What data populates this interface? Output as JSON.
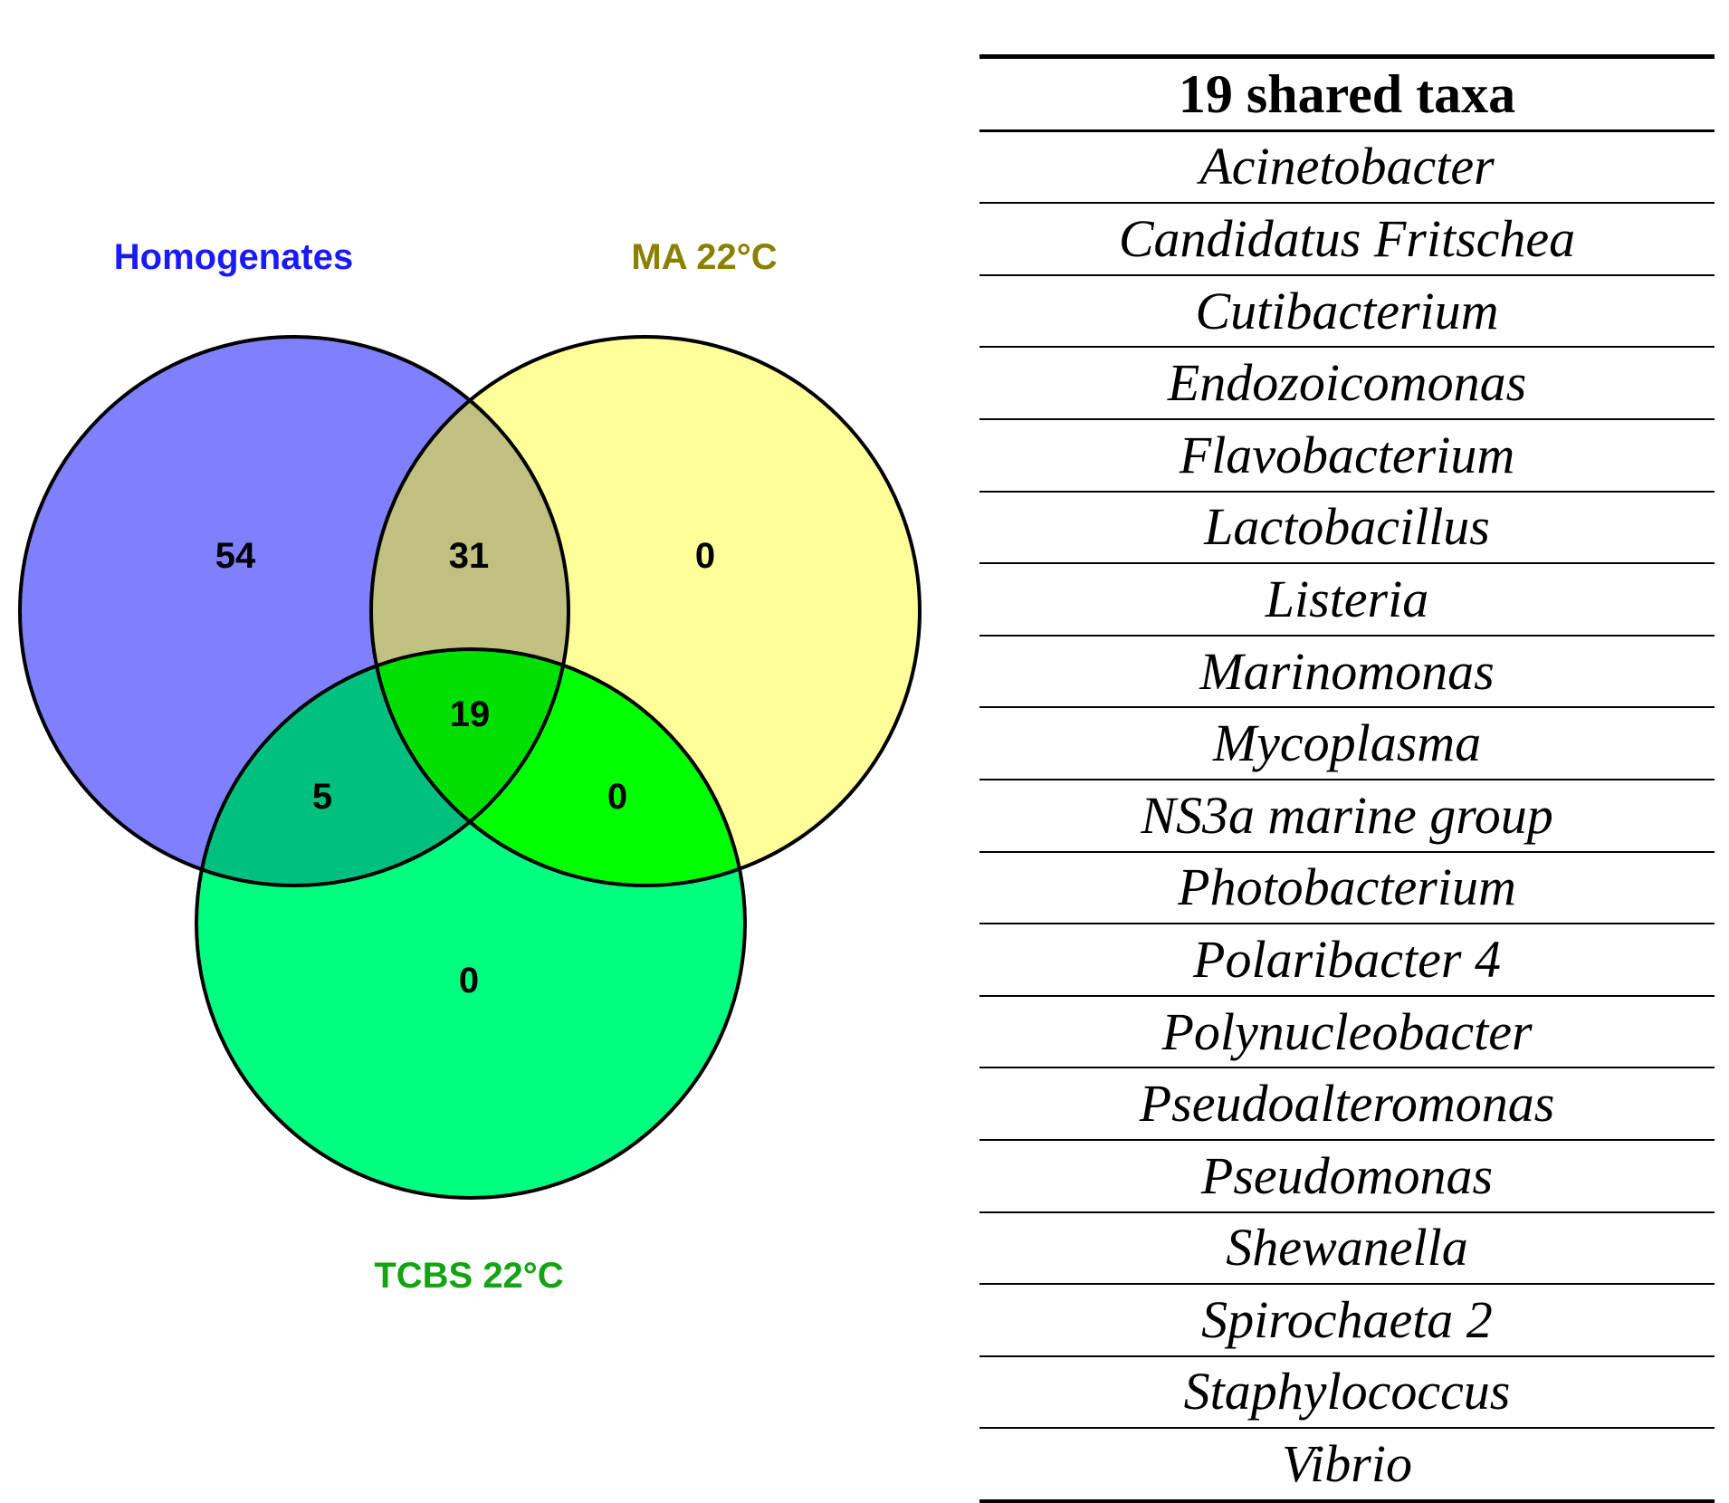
{
  "venn": {
    "sets": {
      "homogenates": {
        "label": "Homogenates",
        "color": "#8080ff",
        "label_color": "#1a1aff"
      },
      "ma": {
        "label": "MA 22°C",
        "color": "#ffff99",
        "label_color": "#8a8000"
      },
      "tcbs": {
        "label": "TCBS 22°C",
        "color": "#00ff80",
        "label_color": "#13a313"
      }
    },
    "regions": {
      "homogenates_only": "54",
      "homogenates_ma": "31",
      "ma_only": "0",
      "all_three": "19",
      "homogenates_tcbs": "5",
      "ma_tcbs": "0",
      "tcbs_only": "0"
    },
    "overlap_colors": {
      "homogenates_ma": "#c0c080",
      "homogenates_tcbs": "#00c080",
      "ma_tcbs": "#00ff00",
      "all_three": "#00e000"
    }
  },
  "table": {
    "header": "19 shared taxa",
    "taxa": [
      "Acinetobacter",
      "Candidatus Fritschea",
      "Cutibacterium",
      "Endozoicomonas",
      "Flavobacterium",
      "Lactobacillus",
      "Listeria",
      "Marinomonas",
      "Mycoplasma",
      "NS3a marine group",
      "Photobacterium",
      "Polaribacter 4",
      "Polynucleobacter",
      "Pseudoalteromonas",
      "Pseudomonas",
      "Shewanella",
      "Spirochaeta 2",
      "Staphylococcus",
      "Vibrio"
    ]
  }
}
